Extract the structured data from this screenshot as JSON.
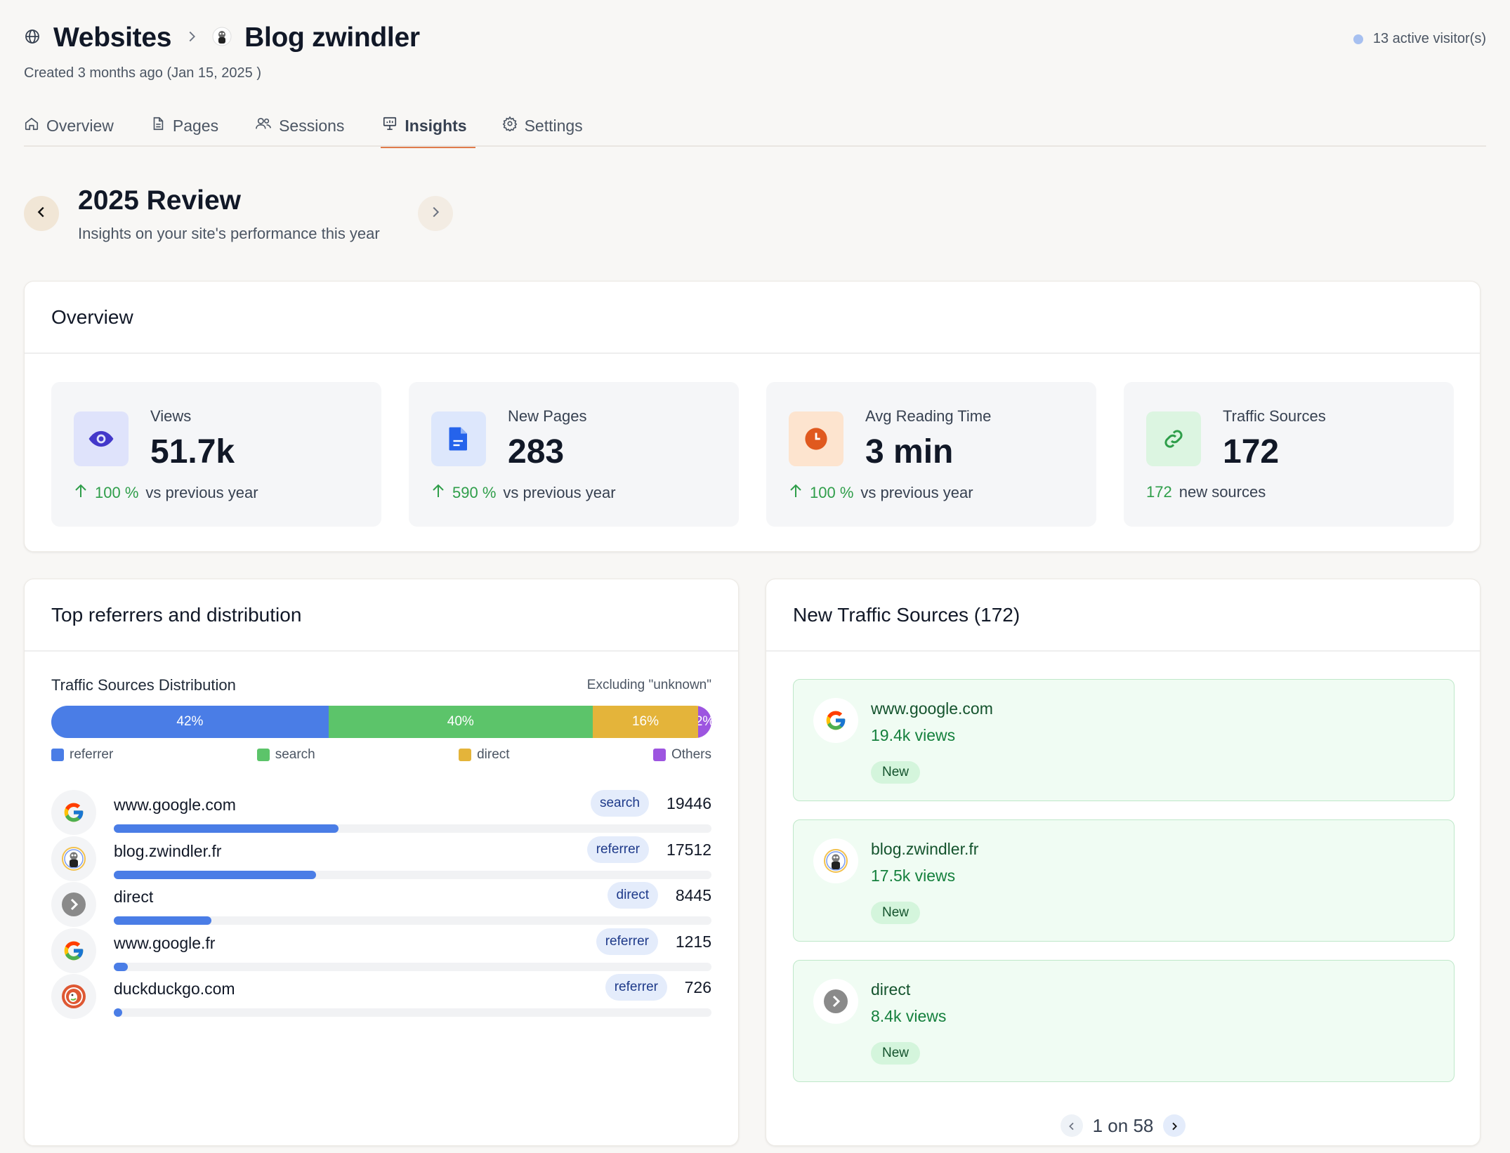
{
  "header": {
    "breadcrumb_root": "Websites",
    "site_name": "Blog zwindler",
    "created": "Created 3 months ago (Jan 15, 2025 )",
    "active_visitors": "13 active visitor(s)"
  },
  "tabs": [
    {
      "label": "Overview",
      "icon": "home-icon"
    },
    {
      "label": "Pages",
      "icon": "file-icon"
    },
    {
      "label": "Sessions",
      "icon": "users-icon"
    },
    {
      "label": "Insights",
      "icon": "presentation-icon",
      "active": true
    },
    {
      "label": "Settings",
      "icon": "gear-icon"
    }
  ],
  "review": {
    "title": "2025 Review",
    "subtitle": "Insights on your site's performance this year"
  },
  "overview": {
    "title": "Overview",
    "stats": [
      {
        "label": "Views",
        "value": "51.7k",
        "change": "100 %",
        "suffix": "vs previous year",
        "icon": "eye-icon",
        "color": "#4338ca"
      },
      {
        "label": "New Pages",
        "value": "283",
        "change": "590 %",
        "suffix": "vs previous year",
        "icon": "document-icon",
        "color": "#2563eb"
      },
      {
        "label": "Avg Reading Time",
        "value": "3 min",
        "change": "100 %",
        "suffix": "vs previous year",
        "icon": "clock-icon",
        "color": "#e0591f"
      },
      {
        "label": "Traffic Sources",
        "value": "172",
        "change": "172",
        "suffix": "new sources",
        "icon": "link-icon",
        "color": "#2f9e4a"
      }
    ]
  },
  "referrers": {
    "title": "Top referrers and distribution",
    "dist_label": "Traffic Sources Distribution",
    "excluding": "Excluding \"unknown\"",
    "segments": [
      {
        "label": "42%",
        "pct": 42,
        "color": "#4a7de6",
        "legend": "referrer"
      },
      {
        "label": "40%",
        "pct": 40,
        "color": "#5cc46a",
        "legend": "search"
      },
      {
        "label": "16%",
        "pct": 16,
        "color": "#e4b43a",
        "legend": "direct"
      },
      {
        "label": "2%",
        "pct": 2,
        "color": "#9d55e0",
        "legend": "Others"
      }
    ],
    "items": [
      {
        "name": "www.google.com",
        "type": "search",
        "count": "19446",
        "fraction": 0.376
      },
      {
        "name": "blog.zwindler.fr",
        "type": "referrer",
        "count": "17512",
        "fraction": 0.339
      },
      {
        "name": "direct",
        "type": "direct",
        "count": "8445",
        "fraction": 0.163
      },
      {
        "name": "www.google.fr",
        "type": "referrer",
        "count": "1215",
        "fraction": 0.023
      },
      {
        "name": "duckduckgo.com",
        "type": "referrer",
        "count": "726",
        "fraction": 0.014
      }
    ]
  },
  "new_sources": {
    "title": "New Traffic Sources (172)",
    "items": [
      {
        "name": "www.google.com",
        "views": "19.4k views",
        "badge": "New"
      },
      {
        "name": "blog.zwindler.fr",
        "views": "17.5k views",
        "badge": "New"
      },
      {
        "name": "direct",
        "views": "8.4k views",
        "badge": "New"
      }
    ],
    "pager": "1 on 58"
  }
}
